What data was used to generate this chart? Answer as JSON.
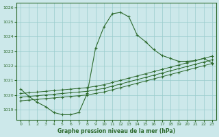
{
  "title": "Graphe pression niveau de la mer (hPa)",
  "background_color": "#cce8ea",
  "grid_color": "#99cccc",
  "line_color": "#2d6a2d",
  "xlim": [
    -0.5,
    23.5
  ],
  "ylim": [
    1018.3,
    1026.3
  ],
  "yticks": [
    1019,
    1020,
    1021,
    1022,
    1023,
    1024,
    1025,
    1026
  ],
  "xticks": [
    0,
    1,
    2,
    3,
    4,
    5,
    6,
    7,
    8,
    9,
    10,
    11,
    12,
    13,
    14,
    15,
    16,
    17,
    18,
    19,
    20,
    21,
    22,
    23
  ],
  "series1_x": [
    0,
    1,
    2,
    3,
    4,
    5,
    6,
    7,
    8,
    9,
    10,
    11,
    12,
    13,
    14,
    15,
    16,
    17,
    18,
    19,
    20,
    21,
    22,
    23
  ],
  "series1_y": [
    1020.4,
    1019.9,
    1019.5,
    1019.2,
    1018.8,
    1018.65,
    1018.65,
    1018.8,
    1020.1,
    1023.2,
    1024.65,
    1025.55,
    1025.65,
    1025.35,
    1024.1,
    1023.65,
    1023.1,
    1022.7,
    1022.5,
    1022.3,
    1022.3,
    1022.35,
    1022.5,
    1022.2
  ],
  "series2_x": [
    0,
    1,
    2,
    3,
    4,
    5,
    6,
    7,
    8,
    9,
    10,
    11,
    12,
    13,
    14,
    15,
    16,
    17,
    18,
    19,
    20,
    21,
    22,
    23
  ],
  "series2_y": [
    1019.6,
    1019.65,
    1019.7,
    1019.75,
    1019.8,
    1019.85,
    1019.9,
    1019.95,
    1020.0,
    1020.1,
    1020.2,
    1020.35,
    1020.5,
    1020.65,
    1020.8,
    1020.95,
    1021.1,
    1021.25,
    1021.4,
    1021.55,
    1021.7,
    1021.85,
    1022.0,
    1022.15
  ],
  "series3_x": [
    0,
    1,
    2,
    3,
    4,
    5,
    6,
    7,
    8,
    9,
    10,
    11,
    12,
    13,
    14,
    15,
    16,
    17,
    18,
    19,
    20,
    21,
    22,
    23
  ],
  "series3_y": [
    1019.85,
    1019.9,
    1019.95,
    1020.0,
    1020.05,
    1020.1,
    1020.15,
    1020.2,
    1020.25,
    1020.35,
    1020.45,
    1020.6,
    1020.75,
    1020.9,
    1021.05,
    1021.2,
    1021.35,
    1021.5,
    1021.65,
    1021.8,
    1021.95,
    1022.1,
    1022.25,
    1022.4
  ],
  "series4_x": [
    0,
    1,
    2,
    3,
    4,
    5,
    6,
    7,
    8,
    9,
    10,
    11,
    12,
    13,
    14,
    15,
    16,
    17,
    18,
    19,
    20,
    21,
    22,
    23
  ],
  "series4_y": [
    1020.1,
    1020.15,
    1020.2,
    1020.25,
    1020.3,
    1020.35,
    1020.4,
    1020.45,
    1020.5,
    1020.6,
    1020.7,
    1020.85,
    1021.0,
    1021.15,
    1021.3,
    1021.45,
    1021.6,
    1021.75,
    1021.9,
    1022.05,
    1022.2,
    1022.35,
    1022.5,
    1022.65
  ]
}
